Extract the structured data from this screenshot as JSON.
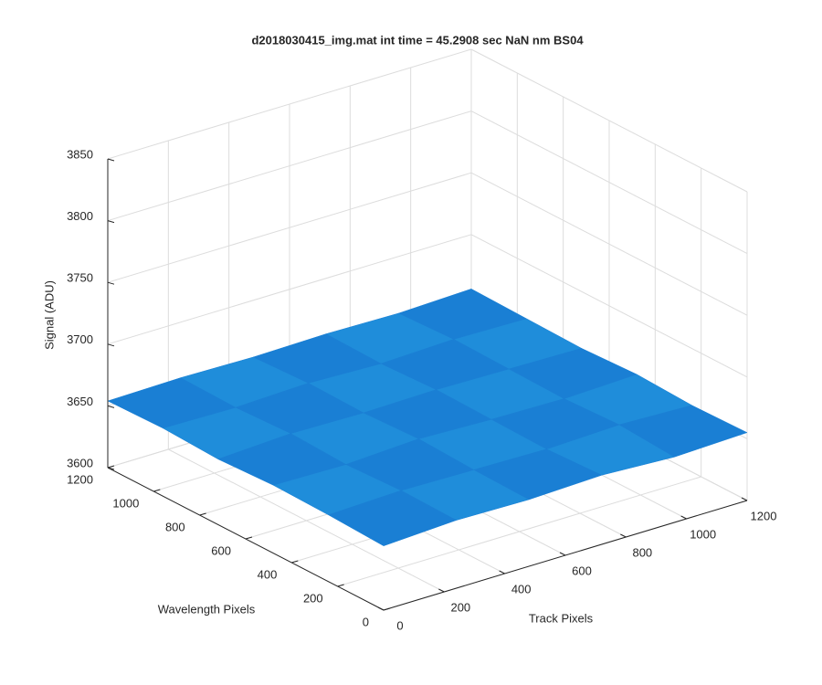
{
  "chart_data": {
    "type": "surface",
    "title": "d2018030415_img.mat int time = 45.2908 sec  NaN nm BS04",
    "xlabel": "Track Pixels",
    "ylabel": "Wavelength Pixels",
    "zlabel": "Signal (ADU)",
    "x": [
      0,
      240,
      480,
      720,
      960,
      1200
    ],
    "y": [
      0,
      240,
      480,
      720,
      960,
      1200
    ],
    "z": [
      [
        3652,
        3655,
        3654,
        3656,
        3653,
        3655
      ],
      [
        3654,
        3656,
        3655,
        3654,
        3656,
        3654
      ],
      [
        3655,
        3654,
        3657,
        3655,
        3654,
        3656
      ],
      [
        3653,
        3656,
        3655,
        3656,
        3655,
        3654
      ],
      [
        3655,
        3654,
        3656,
        3654,
        3656,
        3655
      ],
      [
        3654,
        3655,
        3654,
        3655,
        3654,
        3656
      ]
    ],
    "color": "#1a7fd4",
    "xlim": [
      0,
      1200
    ],
    "ylim": [
      0,
      1200
    ],
    "zlim": [
      3600,
      3850
    ],
    "xticks": [
      0,
      200,
      400,
      600,
      800,
      1000,
      1200
    ],
    "yticks": [
      0,
      200,
      400,
      600,
      800,
      1000,
      1200
    ],
    "zticks": [
      3600,
      3650,
      3700,
      3750,
      3800,
      3850
    ],
    "grid": true
  }
}
